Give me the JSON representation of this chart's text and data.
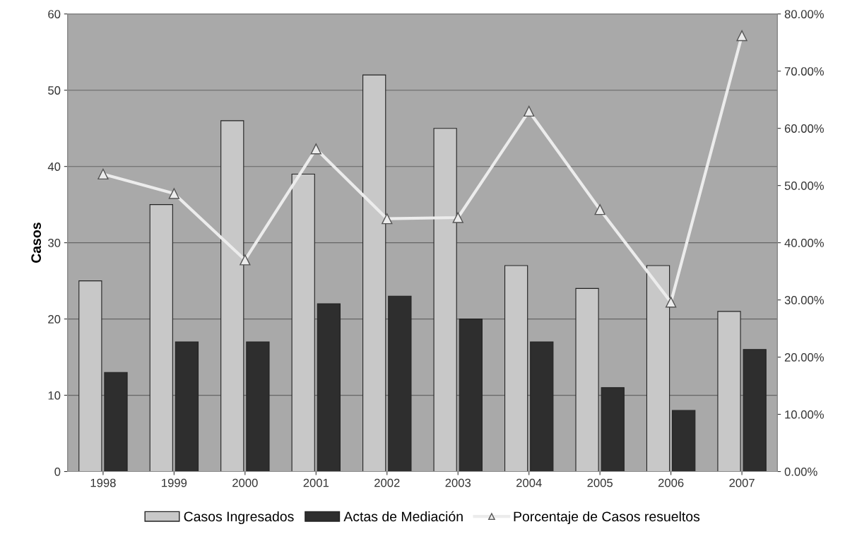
{
  "chart_data": {
    "type": "bar",
    "ylabel": "Casos",
    "categories": [
      "1998",
      "1999",
      "2000",
      "2001",
      "2002",
      "2003",
      "2004",
      "2005",
      "2006",
      "2007"
    ],
    "series": [
      {
        "name": "Casos Ingresados",
        "color": "#c8c8c8",
        "values": [
          25,
          35,
          46,
          39,
          52,
          45,
          27,
          24,
          27,
          21
        ]
      },
      {
        "name": "Actas de Mediación",
        "color": "#2e2e2e",
        "values": [
          13,
          17,
          17,
          22,
          23,
          20,
          17,
          11,
          8,
          16
        ]
      },
      {
        "name": "Porcentaje de Casos resueltos",
        "type": "line",
        "axis": "y2",
        "color": "#ececec",
        "marker": "triangle",
        "line_style": "solid",
        "values": [
          52.0,
          48.6,
          37.0,
          56.4,
          44.2,
          44.4,
          63.0,
          45.8,
          29.6,
          76.2
        ]
      }
    ],
    "ylim": [
      0,
      60
    ],
    "yticks": [
      0,
      10,
      20,
      30,
      40,
      50,
      60
    ],
    "y2lim": [
      0,
      80
    ],
    "y2ticks": [
      {
        "value": 0,
        "label": "0.00%"
      },
      {
        "value": 10,
        "label": "10.00%"
      },
      {
        "value": 20,
        "label": "20.00%"
      },
      {
        "value": 30,
        "label": "30.00%"
      },
      {
        "value": 40,
        "label": "40.00%"
      },
      {
        "value": 50,
        "label": "50.00%"
      },
      {
        "value": 60,
        "label": "60.00%"
      },
      {
        "value": 70,
        "label": "70.00%"
      },
      {
        "value": 80,
        "label": "80.00%"
      }
    ],
    "grid": "y",
    "legend": "bottom"
  }
}
